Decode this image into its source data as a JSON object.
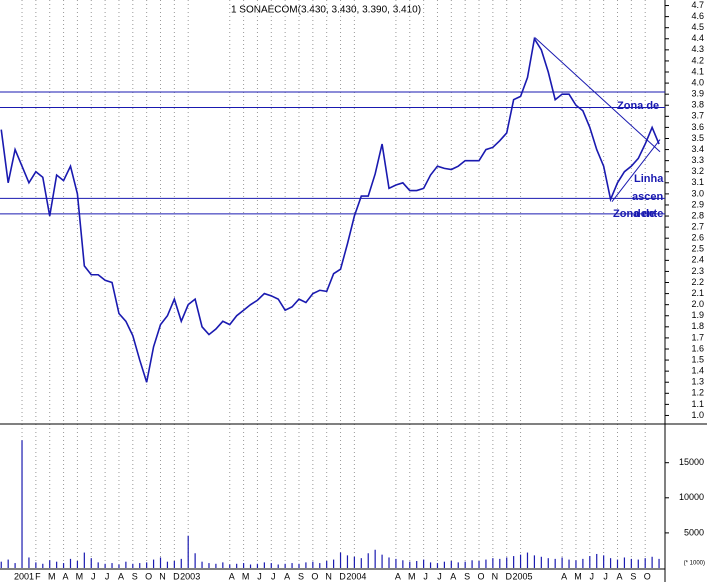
{
  "chart_data": [
    {
      "type": "line",
      "title": "1 SONAECOM(3.430, 3.430, 3.390, 3.410)",
      "x": [
        -1.5,
        -1,
        -0.5,
        0,
        0.5,
        1,
        1.5,
        2,
        2.5,
        3,
        3.5,
        4,
        4.5,
        5,
        5.5,
        6,
        6.5,
        7,
        7.5,
        8,
        8.5,
        9,
        9.5,
        10,
        10.5,
        11,
        11.5,
        12,
        12.5,
        13,
        13.5,
        14,
        14.5,
        15,
        15.5,
        16,
        16.5,
        17,
        17.5,
        18,
        18.5,
        19,
        19.5,
        20,
        20.5,
        21,
        21.5,
        22,
        22.5,
        23,
        23.5,
        24,
        24.5,
        25,
        25.5,
        26,
        26.5,
        27,
        27.5,
        28,
        28.5,
        29,
        29.5,
        30,
        30.5,
        31,
        31.5,
        32,
        32.5,
        33,
        33.5,
        34,
        34.5,
        35,
        35.5,
        36,
        36.5,
        37,
        37.5,
        38,
        38.5,
        39,
        39.5,
        40,
        40.5,
        41,
        41.5,
        42,
        42.5,
        43,
        43.5,
        44,
        44.5,
        45,
        45.5,
        46
      ],
      "values": [
        3.58,
        3.1,
        3.4,
        3.25,
        3.1,
        3.2,
        3.15,
        2.8,
        3.17,
        3.12,
        3.25,
        3.0,
        2.35,
        2.27,
        2.27,
        2.22,
        2.2,
        1.92,
        1.85,
        1.72,
        1.5,
        1.3,
        1.62,
        1.82,
        1.9,
        2.05,
        1.85,
        2.0,
        2.05,
        1.8,
        1.73,
        1.78,
        1.85,
        1.82,
        1.9,
        1.95,
        2.0,
        2.04,
        2.1,
        2.08,
        2.05,
        1.95,
        1.98,
        2.05,
        2.02,
        2.1,
        2.13,
        2.12,
        2.28,
        2.32,
        2.55,
        2.8,
        2.98,
        2.98,
        3.18,
        3.45,
        3.05,
        3.08,
        3.1,
        3.03,
        3.03,
        3.05,
        3.17,
        3.25,
        3.23,
        3.22,
        3.25,
        3.3,
        3.3,
        3.3,
        3.4,
        3.42,
        3.48,
        3.55,
        3.85,
        3.88,
        4.05,
        4.4,
        4.3,
        4.1,
        3.85,
        3.9,
        3.9,
        3.8,
        3.75,
        3.6,
        3.4,
        3.25,
        2.95,
        3.1,
        3.2,
        3.25,
        3.32,
        3.45,
        3.6,
        3.45
      ],
      "color": "#1a1ab0",
      "xlim": [
        -1.59,
        46.43
      ],
      "ylim": [
        0.95,
        4.75
      ],
      "yticks": [
        {
          "value": 1,
          "label": "1.0"
        },
        1.1,
        1.2,
        1.3,
        1.4,
        1.5,
        1.6,
        1.7,
        1.8,
        1.9,
        {
          "value": 2,
          "label": "2.0"
        },
        2.1,
        2.2,
        2.3,
        2.4,
        2.5,
        2.6,
        2.7,
        2.8,
        2.9,
        {
          "value": 3,
          "label": "3.0"
        },
        3.1,
        3.2,
        3.3,
        3.4,
        3.5,
        3.6,
        3.7,
        3.8,
        3.9,
        {
          "value": 4,
          "label": "4.0"
        },
        4.1,
        4.2,
        4.3,
        4.4,
        4.5,
        4.6,
        4.7
      ],
      "hlines": [
        3.92,
        3.78,
        2.96,
        2.82
      ],
      "trendlines": [
        {
          "x": [
            37.04,
            46.07
          ],
          "y": [
            4.41,
            3.38
          ]
        },
        {
          "x": [
            42.6,
            46.07
          ],
          "y": [
            2.93,
            3.49
          ]
        }
      ],
      "annotations": [
        "Zona de",
        "Linha",
        "ascen",
        "Zona de",
        "dente"
      ]
    },
    {
      "type": "bar",
      "x": [
        -1.5,
        -1,
        -0.5,
        0,
        0.5,
        1,
        1.5,
        2,
        2.5,
        3,
        3.5,
        4,
        4.5,
        5,
        5.5,
        6,
        6.5,
        7,
        7.5,
        8,
        8.5,
        9,
        9.5,
        10,
        10.5,
        11,
        11.5,
        12,
        12.5,
        13,
        13.5,
        14,
        14.5,
        15,
        15.5,
        16,
        16.5,
        17,
        17.5,
        18,
        18.5,
        19,
        19.5,
        20,
        20.5,
        21,
        21.5,
        22,
        22.5,
        23,
        23.5,
        24,
        24.5,
        25,
        25.5,
        26,
        26.5,
        27,
        27.5,
        28,
        28.5,
        29,
        29.5,
        30,
        30.5,
        31,
        31.5,
        32,
        32.5,
        33,
        33.5,
        34,
        34.5,
        35,
        35.5,
        36,
        36.5,
        37,
        37.5,
        38,
        38.5,
        39,
        39.5,
        40,
        40.5,
        41,
        41.5,
        42,
        42.5,
        43,
        43.5,
        44,
        44.5,
        45,
        45.5,
        46
      ],
      "values": [
        900,
        1200,
        700,
        18200,
        1500,
        800,
        600,
        1100,
        900,
        700,
        1300,
        1000,
        2200,
        1400,
        800,
        600,
        700,
        500,
        900,
        600,
        700,
        800,
        1200,
        1500,
        900,
        1000,
        1300,
        4600,
        2100,
        900,
        700,
        600,
        800,
        500,
        600,
        700,
        500,
        600,
        800,
        700,
        500,
        600,
        700,
        600,
        800,
        900,
        700,
        1000,
        1200,
        2200,
        1800,
        1600,
        1400,
        2100,
        2600,
        1900,
        1500,
        1300,
        1100,
        900,
        1000,
        1200,
        800,
        700,
        900,
        1000,
        800,
        900,
        1100,
        1000,
        1200,
        1400,
        1300,
        1500,
        1700,
        1900,
        2200,
        1800,
        1600,
        1400,
        1300,
        1500,
        1200,
        1100,
        1300,
        1700,
        2000,
        1800,
        1400,
        1200,
        1500,
        1300,
        1200,
        1400,
        1600,
        1300
      ],
      "color": "#1a1ab0",
      "xlim": [
        -1.59,
        46.43
      ],
      "ylim": [
        0,
        19800
      ],
      "yticks": [
        5000,
        10000,
        15000
      ],
      "unit_note": "(* 1000)",
      "xticks": [
        {
          "value": 0,
          "label": "2001"
        },
        {
          "value": 1,
          "label": "F"
        },
        {
          "value": 2,
          "label": "M"
        },
        {
          "value": 3,
          "label": "A"
        },
        {
          "value": 4,
          "label": "M"
        },
        {
          "value": 5,
          "label": "J"
        },
        {
          "value": 6,
          "label": "J"
        },
        {
          "value": 7,
          "label": "A"
        },
        {
          "value": 8,
          "label": "S"
        },
        {
          "value": 9,
          "label": "O"
        },
        {
          "value": 10,
          "label": "N"
        },
        {
          "value": 11,
          "label": "D"
        },
        {
          "value": 12,
          "label": "2003"
        },
        {
          "value": 15,
          "label": "A"
        },
        {
          "value": 16,
          "label": "M"
        },
        {
          "value": 17,
          "label": "J"
        },
        {
          "value": 18,
          "label": "J"
        },
        {
          "value": 19,
          "label": "A"
        },
        {
          "value": 20,
          "label": "S"
        },
        {
          "value": 21,
          "label": "O"
        },
        {
          "value": 22,
          "label": "N"
        },
        {
          "value": 23,
          "label": "D"
        },
        {
          "value": 24,
          "label": "2004"
        },
        {
          "value": 27,
          "label": "A"
        },
        {
          "value": 28,
          "label": "M"
        },
        {
          "value": 29,
          "label": "J"
        },
        {
          "value": 30,
          "label": "J"
        },
        {
          "value": 31,
          "label": "A"
        },
        {
          "value": 32,
          "label": "S"
        },
        {
          "value": 33,
          "label": "O"
        },
        {
          "value": 34,
          "label": "N"
        },
        {
          "value": 35,
          "label": "D"
        },
        {
          "value": 36,
          "label": "2005"
        },
        {
          "value": 39,
          "label": "A"
        },
        {
          "value": 40,
          "label": "M"
        },
        {
          "value": 41,
          "label": "J"
        },
        {
          "value": 42,
          "label": "J"
        },
        {
          "value": 43,
          "label": "A"
        },
        {
          "value": 44,
          "label": "S"
        },
        {
          "value": 45,
          "label": "O"
        }
      ]
    }
  ]
}
